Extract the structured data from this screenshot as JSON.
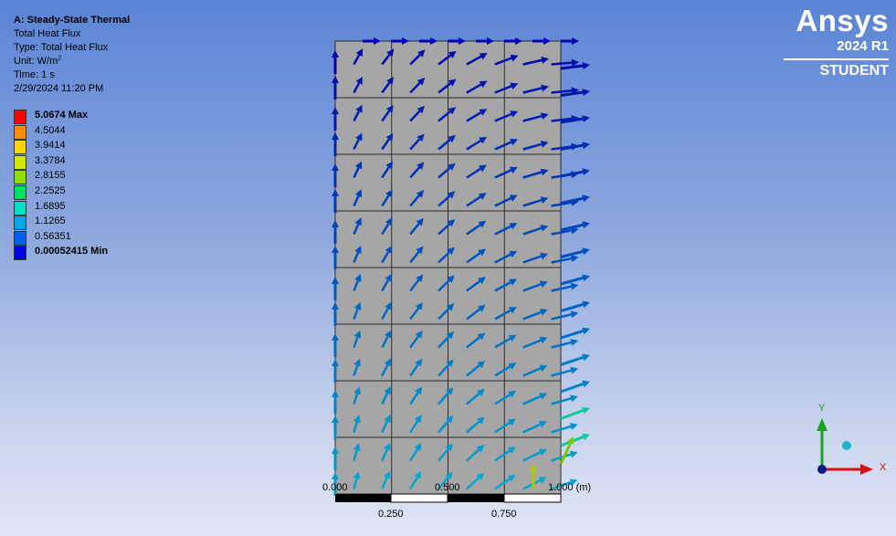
{
  "info": {
    "title": "A: Steady-State Thermal",
    "line1": "Total Heat Flux",
    "line2": "Type: Total Heat Flux",
    "unit_prefix": "Unit: W/m",
    "unit_sup": "2",
    "time": "Time: 1 s",
    "date": "2/29/2024 11:20 PM"
  },
  "legend": [
    {
      "label": "5.0674 Max",
      "color": "#ff0000",
      "bold": true
    },
    {
      "label": "4.5044",
      "color": "#ff8c00"
    },
    {
      "label": "3.9414",
      "color": "#ffd400"
    },
    {
      "label": "3.3784",
      "color": "#d2e600"
    },
    {
      "label": "2.8155",
      "color": "#8fe000"
    },
    {
      "label": "2.2525",
      "color": "#00e060"
    },
    {
      "label": "1.6895",
      "color": "#00e0c8"
    },
    {
      "label": "1.1265",
      "color": "#00a8e6"
    },
    {
      "label": "0.56351",
      "color": "#0060f0"
    },
    {
      "label": "0.00052415 Min",
      "color": "#0000e8",
      "bold": true
    }
  ],
  "brand": {
    "name": "Ansys",
    "version": "2024 R1",
    "edition": "STUDENT"
  },
  "scale": {
    "t0": "0.000",
    "t1": "0.500",
    "t2": "1.000 (m)",
    "b1": "0.250",
    "b2": "0.750"
  },
  "triad": {
    "y": "Y",
    "x": "X"
  },
  "colors": {
    "model_face": "#a6a6a6",
    "mesh_line": "#2b2b2b",
    "triad_y": "#1aa31a",
    "triad_x": "#d41414",
    "triad_center": "#0a1a8c",
    "iso_ball": "#1fb3c6"
  }
}
